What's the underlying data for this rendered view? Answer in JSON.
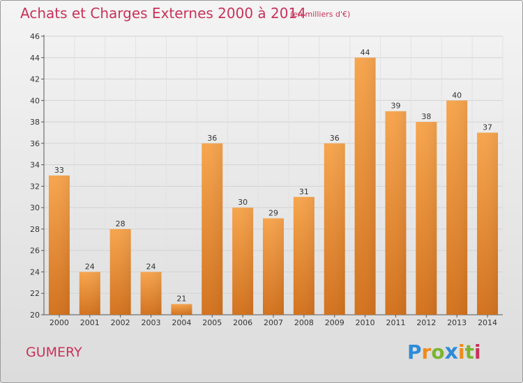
{
  "header": {
    "title": "Achats et Charges Externes 2000 à 2014",
    "subtitle": "(en milliers d'€)"
  },
  "footer": {
    "commune": "GUMERY",
    "logo_text": "Proxiti"
  },
  "colors": {
    "title": "#c8325a",
    "bar_light": "#f7a54e",
    "bar_dark": "#d3731f",
    "grid": "#cccccc"
  },
  "chart_data": {
    "type": "bar",
    "title": "Achats et Charges Externes 2000 à 2014",
    "subtitle": "(en milliers d'€)",
    "categories": [
      "2000",
      "2001",
      "2002",
      "2003",
      "2004",
      "2005",
      "2006",
      "2007",
      "2008",
      "2009",
      "2010",
      "2011",
      "2012",
      "2013",
      "2014"
    ],
    "values": [
      33,
      24,
      28,
      24,
      21,
      36,
      30,
      29,
      31,
      36,
      44,
      39,
      38,
      40,
      37
    ],
    "ylim": [
      20,
      46
    ],
    "yticks": [
      20,
      22,
      24,
      26,
      28,
      30,
      32,
      34,
      36,
      38,
      40,
      42,
      44,
      46
    ],
    "grid": true,
    "legend": "none"
  }
}
